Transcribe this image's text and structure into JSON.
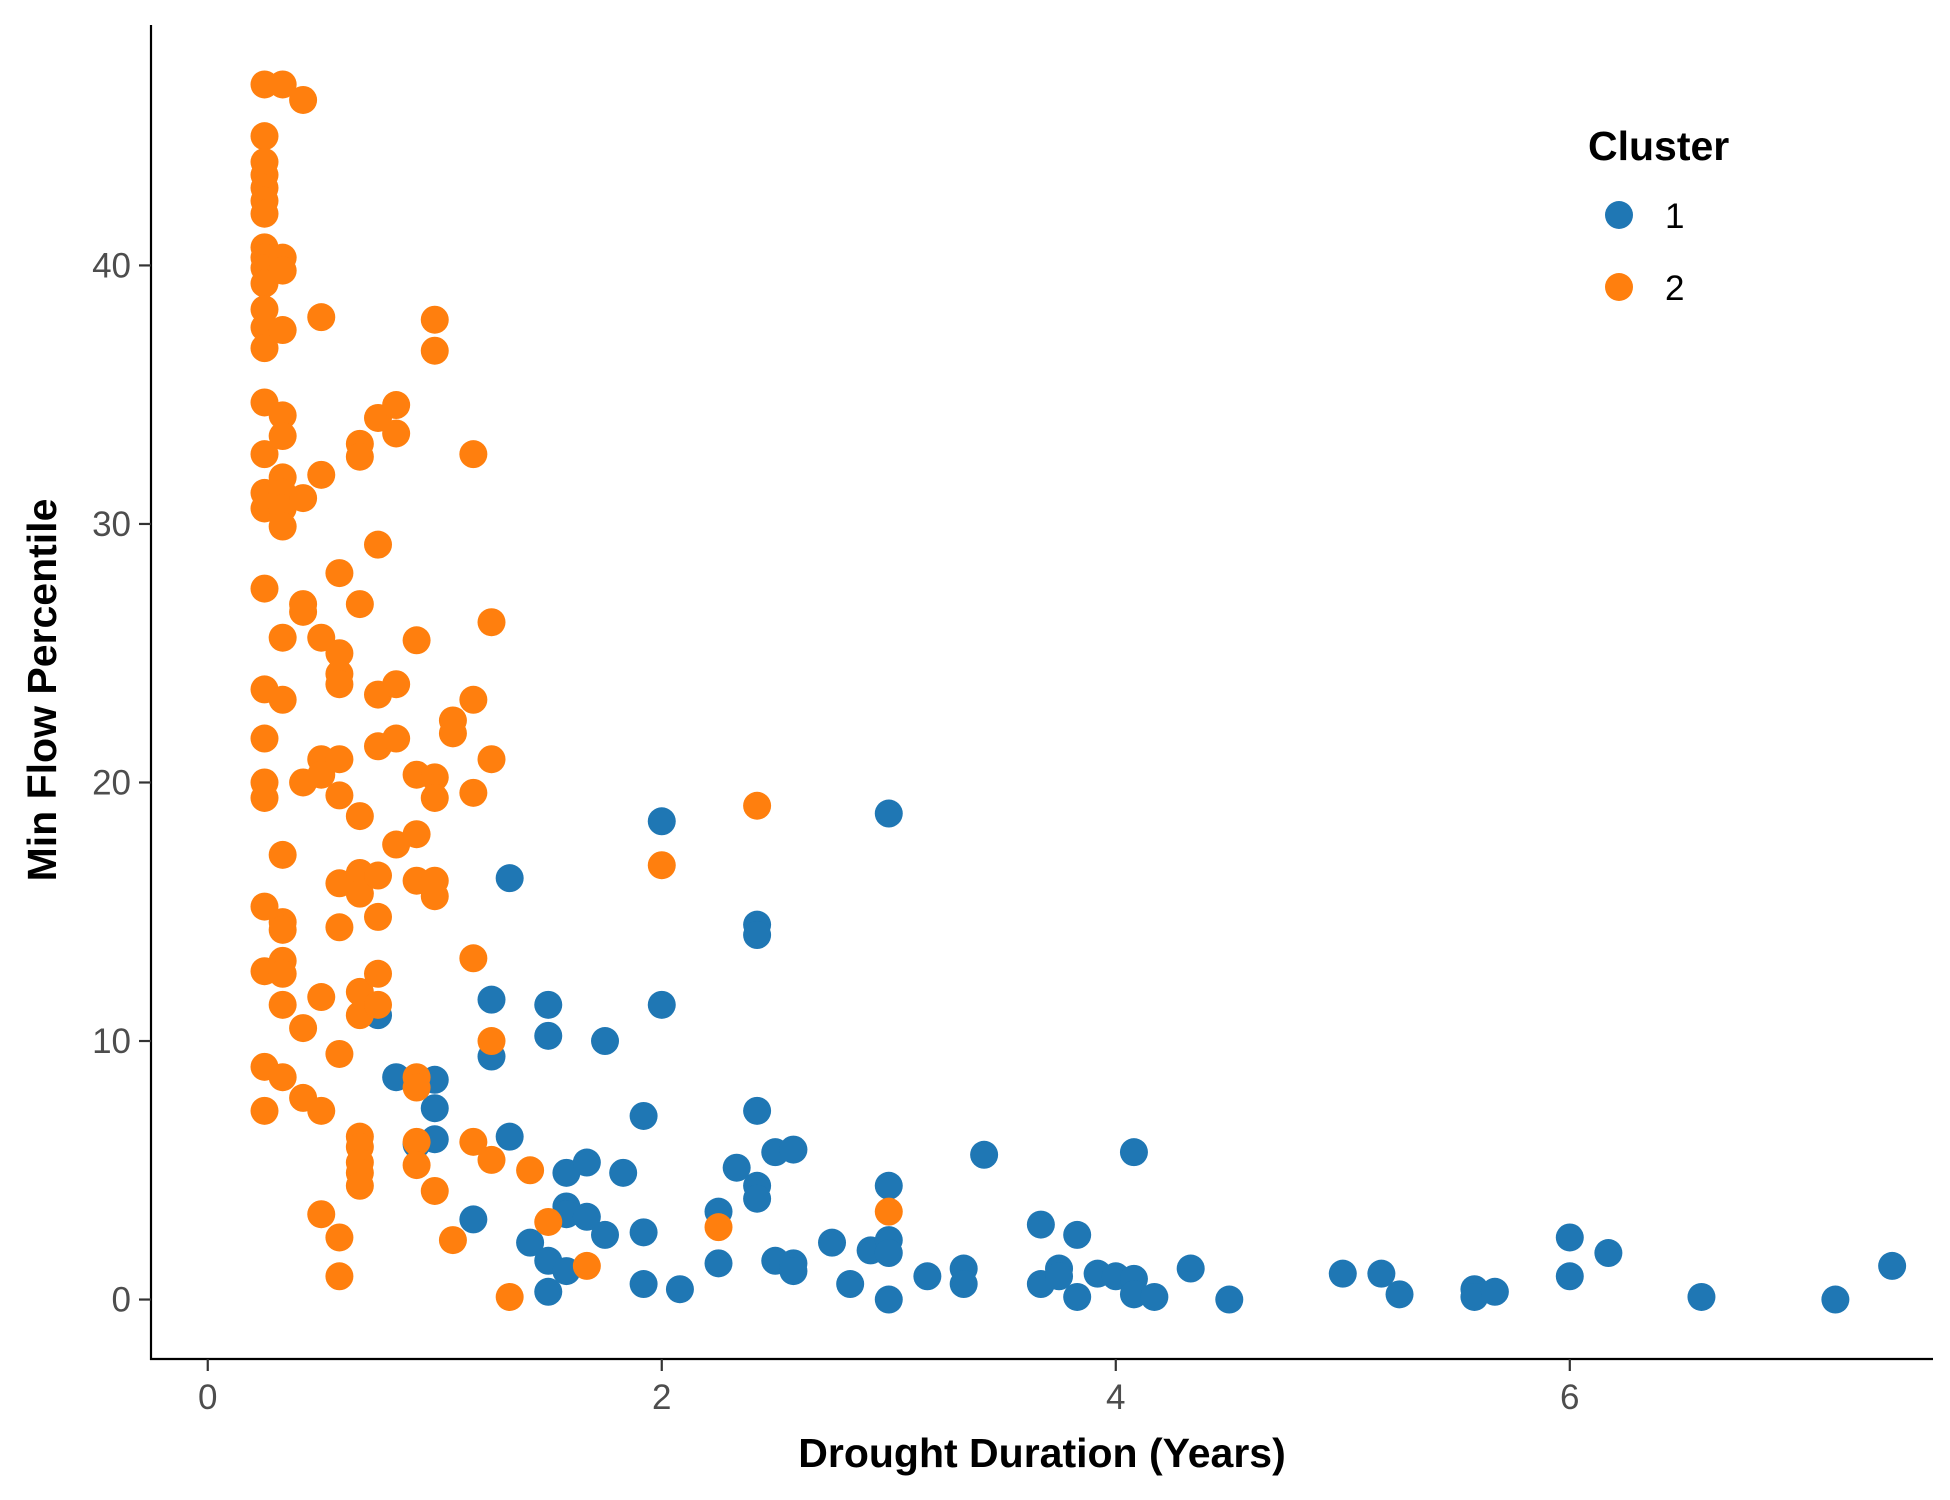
{
  "chart_data": {
    "type": "scatter",
    "title": "",
    "xlabel": "Drought Duration (Years)",
    "ylabel": "Min Flow Percentile",
    "xlim": [
      -0.25,
      7.6
    ],
    "ylim": [
      -2.3,
      49.3
    ],
    "xticks": [
      0,
      2,
      4,
      6
    ],
    "yticks": [
      0,
      10,
      20,
      30,
      40
    ],
    "grid": false,
    "legend": {
      "title": "Cluster",
      "position": "top-right"
    },
    "series": [
      {
        "name": "1",
        "color": "#1F77B4",
        "points": [
          [
            0.75,
            11.0
          ],
          [
            0.83,
            8.6
          ],
          [
            1.0,
            8.5
          ],
          [
            1.0,
            7.4
          ],
          [
            0.92,
            6.0
          ],
          [
            1.0,
            6.2
          ],
          [
            1.17,
            3.1
          ],
          [
            1.25,
            11.6
          ],
          [
            1.25,
            9.4
          ],
          [
            1.33,
            16.3
          ],
          [
            1.33,
            6.3
          ],
          [
            1.42,
            2.2
          ],
          [
            1.5,
            11.4
          ],
          [
            1.5,
            10.2
          ],
          [
            1.5,
            1.5
          ],
          [
            1.5,
            0.3
          ],
          [
            1.58,
            4.9
          ],
          [
            1.58,
            3.6
          ],
          [
            1.58,
            3.3
          ],
          [
            1.58,
            1.1
          ],
          [
            1.67,
            5.3
          ],
          [
            1.67,
            3.2
          ],
          [
            1.75,
            10.0
          ],
          [
            1.75,
            2.5
          ],
          [
            1.83,
            4.9
          ],
          [
            1.92,
            7.1
          ],
          [
            1.92,
            2.6
          ],
          [
            1.92,
            0.6
          ],
          [
            2.0,
            18.5
          ],
          [
            2.0,
            11.4
          ],
          [
            2.08,
            0.4
          ],
          [
            2.25,
            3.4
          ],
          [
            2.25,
            1.4
          ],
          [
            2.33,
            5.1
          ],
          [
            2.42,
            14.5
          ],
          [
            2.42,
            14.1
          ],
          [
            2.42,
            7.3
          ],
          [
            2.42,
            4.4
          ],
          [
            2.42,
            3.9
          ],
          [
            2.5,
            5.7
          ],
          [
            2.5,
            1.5
          ],
          [
            2.58,
            5.8
          ],
          [
            2.58,
            1.4
          ],
          [
            2.58,
            1.1
          ],
          [
            2.75,
            2.2
          ],
          [
            2.83,
            0.6
          ],
          [
            2.92,
            1.9
          ],
          [
            3.0,
            18.8
          ],
          [
            3.0,
            4.4
          ],
          [
            3.0,
            2.3
          ],
          [
            3.0,
            1.8
          ],
          [
            3.0,
            0.0
          ],
          [
            3.17,
            0.9
          ],
          [
            3.33,
            1.2
          ],
          [
            3.33,
            0.6
          ],
          [
            3.42,
            5.6
          ],
          [
            3.67,
            2.9
          ],
          [
            3.67,
            0.6
          ],
          [
            3.75,
            1.2
          ],
          [
            3.75,
            0.9
          ],
          [
            3.83,
            2.5
          ],
          [
            3.83,
            0.1
          ],
          [
            3.92,
            1.0
          ],
          [
            4.0,
            0.9
          ],
          [
            4.08,
            5.7
          ],
          [
            4.08,
            0.8
          ],
          [
            4.08,
            0.2
          ],
          [
            4.17,
            0.1
          ],
          [
            4.33,
            1.2
          ],
          [
            4.5,
            0.0
          ],
          [
            5.0,
            1.0
          ],
          [
            5.17,
            1.0
          ],
          [
            5.25,
            0.2
          ],
          [
            5.58,
            0.4
          ],
          [
            5.58,
            0.1
          ],
          [
            5.67,
            0.3
          ],
          [
            6.0,
            2.4
          ],
          [
            6.0,
            0.9
          ],
          [
            6.17,
            1.8
          ],
          [
            6.58,
            0.1
          ],
          [
            7.17,
            0.0
          ],
          [
            7.42,
            1.3
          ]
        ]
      },
      {
        "name": "2",
        "color": "#FF7F0E",
        "points": [
          [
            0.25,
            47.0
          ],
          [
            0.25,
            45.0
          ],
          [
            0.25,
            44.0
          ],
          [
            0.25,
            43.5
          ],
          [
            0.25,
            43.0
          ],
          [
            0.25,
            42.5
          ],
          [
            0.25,
            42.0
          ],
          [
            0.25,
            40.7
          ],
          [
            0.25,
            40.3
          ],
          [
            0.25,
            39.9
          ],
          [
            0.25,
            39.3
          ],
          [
            0.25,
            38.3
          ],
          [
            0.25,
            37.6
          ],
          [
            0.25,
            36.8
          ],
          [
            0.25,
            34.7
          ],
          [
            0.25,
            32.7
          ],
          [
            0.25,
            31.2
          ],
          [
            0.25,
            30.6
          ],
          [
            0.25,
            27.5
          ],
          [
            0.25,
            23.6
          ],
          [
            0.25,
            21.7
          ],
          [
            0.25,
            20.0
          ],
          [
            0.25,
            19.4
          ],
          [
            0.25,
            15.2
          ],
          [
            0.25,
            12.7
          ],
          [
            0.25,
            9.0
          ],
          [
            0.25,
            7.3
          ],
          [
            0.33,
            47.0
          ],
          [
            0.33,
            40.3
          ],
          [
            0.33,
            39.8
          ],
          [
            0.33,
            37.5
          ],
          [
            0.33,
            34.2
          ],
          [
            0.33,
            33.4
          ],
          [
            0.33,
            31.8
          ],
          [
            0.33,
            31.2
          ],
          [
            0.33,
            30.6
          ],
          [
            0.33,
            29.9
          ],
          [
            0.33,
            25.6
          ],
          [
            0.33,
            23.2
          ],
          [
            0.33,
            17.2
          ],
          [
            0.33,
            14.6
          ],
          [
            0.33,
            14.3
          ],
          [
            0.33,
            13.1
          ],
          [
            0.33,
            12.6
          ],
          [
            0.33,
            11.4
          ],
          [
            0.33,
            8.6
          ],
          [
            0.42,
            46.4
          ],
          [
            0.42,
            31.0
          ],
          [
            0.42,
            26.9
          ],
          [
            0.42,
            26.6
          ],
          [
            0.42,
            20.0
          ],
          [
            0.42,
            10.5
          ],
          [
            0.42,
            7.8
          ],
          [
            0.5,
            38.0
          ],
          [
            0.5,
            31.9
          ],
          [
            0.5,
            25.6
          ],
          [
            0.5,
            20.9
          ],
          [
            0.5,
            20.3
          ],
          [
            0.5,
            11.7
          ],
          [
            0.5,
            7.3
          ],
          [
            0.5,
            3.3
          ],
          [
            0.58,
            28.1
          ],
          [
            0.58,
            25.0
          ],
          [
            0.58,
            24.2
          ],
          [
            0.58,
            23.8
          ],
          [
            0.58,
            20.9
          ],
          [
            0.58,
            19.5
          ],
          [
            0.58,
            16.1
          ],
          [
            0.58,
            14.4
          ],
          [
            0.58,
            9.5
          ],
          [
            0.58,
            2.4
          ],
          [
            0.58,
            0.9
          ],
          [
            0.67,
            33.1
          ],
          [
            0.67,
            32.6
          ],
          [
            0.67,
            26.9
          ],
          [
            0.67,
            18.7
          ],
          [
            0.67,
            16.5
          ],
          [
            0.67,
            15.7
          ],
          [
            0.67,
            11.9
          ],
          [
            0.67,
            11.0
          ],
          [
            0.67,
            6.3
          ],
          [
            0.67,
            5.9
          ],
          [
            0.67,
            5.3
          ],
          [
            0.67,
            4.9
          ],
          [
            0.67,
            4.4
          ],
          [
            0.75,
            34.1
          ],
          [
            0.75,
            29.2
          ],
          [
            0.75,
            23.4
          ],
          [
            0.75,
            21.4
          ],
          [
            0.75,
            16.4
          ],
          [
            0.75,
            14.8
          ],
          [
            0.75,
            12.6
          ],
          [
            0.75,
            11.4
          ],
          [
            0.83,
            34.6
          ],
          [
            0.83,
            33.5
          ],
          [
            0.83,
            23.8
          ],
          [
            0.83,
            21.7
          ],
          [
            0.83,
            17.6
          ],
          [
            0.92,
            25.5
          ],
          [
            0.92,
            20.3
          ],
          [
            0.92,
            18.0
          ],
          [
            0.92,
            16.2
          ],
          [
            0.92,
            8.6
          ],
          [
            0.92,
            8.2
          ],
          [
            0.92,
            6.1
          ],
          [
            0.92,
            5.2
          ],
          [
            1.0,
            37.9
          ],
          [
            1.0,
            36.7
          ],
          [
            1.0,
            20.2
          ],
          [
            1.0,
            19.4
          ],
          [
            1.0,
            16.2
          ],
          [
            1.0,
            15.6
          ],
          [
            1.0,
            4.2
          ],
          [
            1.08,
            22.4
          ],
          [
            1.08,
            21.9
          ],
          [
            1.08,
            2.3
          ],
          [
            1.17,
            32.7
          ],
          [
            1.17,
            23.2
          ],
          [
            1.17,
            19.6
          ],
          [
            1.17,
            13.2
          ],
          [
            1.17,
            6.1
          ],
          [
            1.25,
            26.2
          ],
          [
            1.25,
            20.9
          ],
          [
            1.25,
            10.0
          ],
          [
            1.25,
            5.4
          ],
          [
            1.33,
            0.1
          ],
          [
            1.42,
            5.0
          ],
          [
            1.5,
            3.0
          ],
          [
            1.67,
            1.3
          ],
          [
            2.0,
            16.8
          ],
          [
            2.25,
            2.8
          ],
          [
            2.42,
            19.1
          ],
          [
            3.0,
            3.4
          ]
        ]
      }
    ]
  }
}
